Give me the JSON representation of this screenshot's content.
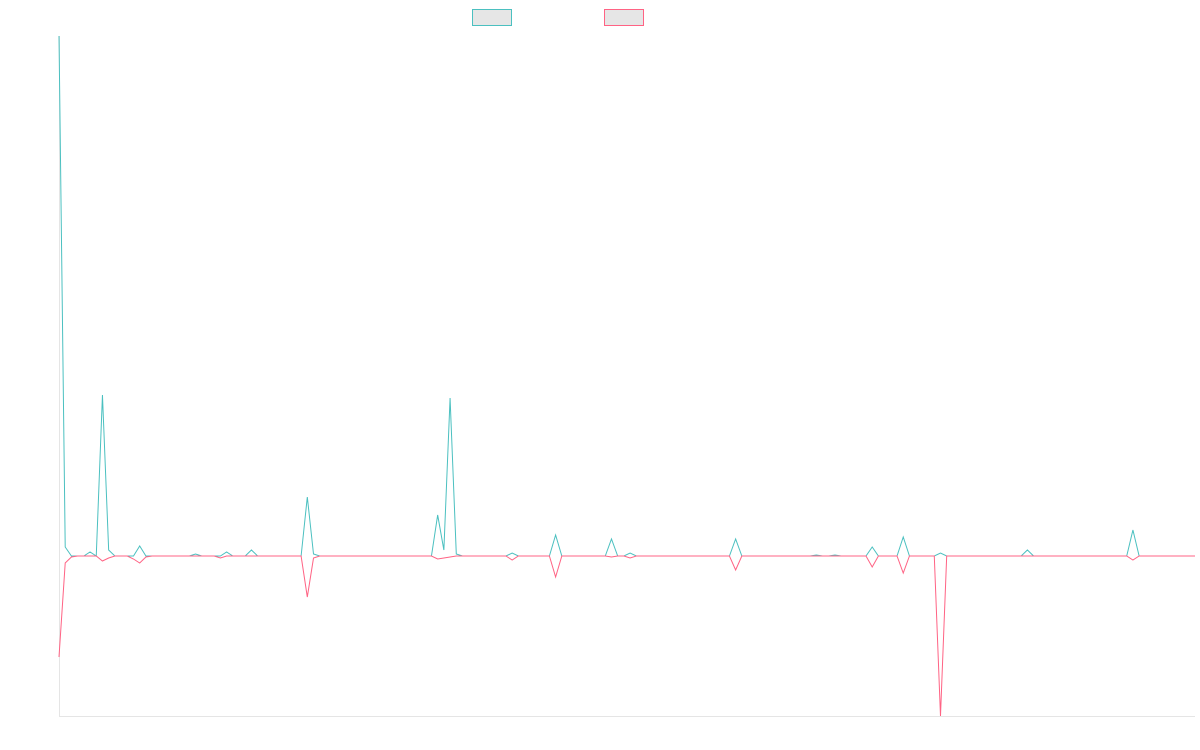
{
  "chart_data": {
    "type": "line",
    "ylim": [
      -160,
      520
    ],
    "series": [
      {
        "color": "#4bc0c0",
        "values": [
          520,
          9,
          0,
          0,
          0,
          4,
          0,
          161,
          6,
          0,
          0,
          0,
          0,
          10,
          0,
          0,
          0,
          0,
          0,
          0,
          0,
          0,
          2,
          0,
          0,
          0,
          0,
          4,
          0,
          0,
          0,
          6,
          0,
          0,
          0,
          0,
          0,
          0,
          0,
          0,
          59,
          2,
          0,
          0,
          0,
          0,
          0,
          0,
          0,
          0,
          0,
          0,
          0,
          0,
          0,
          0,
          0,
          0,
          0,
          0,
          0,
          41,
          6,
          158,
          2,
          0,
          0,
          0,
          0,
          0,
          0,
          0,
          0,
          3,
          0,
          0,
          0,
          0,
          0,
          0,
          21,
          0,
          0,
          0,
          0,
          0,
          0,
          0,
          0,
          17,
          0,
          0,
          3,
          0,
          0,
          0,
          0,
          0,
          0,
          0,
          0,
          0,
          0,
          0,
          0,
          0,
          0,
          0,
          0,
          17,
          0,
          0,
          0,
          0,
          0,
          0,
          0,
          0,
          0,
          0,
          0,
          0,
          1,
          0,
          0,
          1,
          0,
          0,
          0,
          0,
          0,
          9,
          0,
          0,
          0,
          0,
          19,
          0,
          0,
          0,
          0,
          0,
          3,
          0,
          0,
          0,
          0,
          0,
          0,
          0,
          0,
          0,
          0,
          0,
          0,
          0,
          6,
          0,
          0,
          0,
          0,
          0,
          0,
          0,
          0,
          0,
          0,
          0,
          0,
          0,
          0,
          0,
          0,
          26,
          0,
          0,
          0,
          0,
          0,
          0,
          0,
          0,
          0,
          0
        ]
      },
      {
        "color": "#ff6384",
        "values": [
          -101,
          -7,
          -1,
          0,
          0,
          0,
          0,
          -5,
          -2,
          0,
          0,
          0,
          -3,
          -7,
          -1,
          0,
          0,
          0,
          0,
          0,
          0,
          0,
          0,
          0,
          0,
          0,
          -2,
          0,
          0,
          0,
          0,
          0,
          0,
          0,
          0,
          0,
          0,
          0,
          0,
          0,
          -41,
          -2,
          0,
          0,
          0,
          0,
          0,
          0,
          0,
          0,
          0,
          0,
          0,
          0,
          0,
          0,
          0,
          0,
          0,
          0,
          0,
          -3,
          -2,
          -1,
          0,
          0,
          0,
          0,
          0,
          0,
          0,
          0,
          0,
          -4,
          0,
          0,
          0,
          0,
          0,
          0,
          -21,
          0,
          0,
          0,
          0,
          0,
          0,
          0,
          0,
          -1,
          0,
          0,
          -2,
          0,
          0,
          0,
          0,
          0,
          0,
          0,
          0,
          0,
          0,
          0,
          0,
          0,
          0,
          0,
          0,
          -14,
          0,
          0,
          0,
          0,
          0,
          0,
          0,
          0,
          0,
          0,
          0,
          0,
          0,
          0,
          0,
          0,
          0,
          0,
          0,
          0,
          0,
          -11,
          0,
          0,
          0,
          0,
          -17,
          0,
          0,
          0,
          0,
          0,
          -160,
          0,
          0,
          0,
          0,
          0,
          0,
          0,
          0,
          0,
          0,
          0,
          0,
          0,
          0,
          0,
          0,
          0,
          0,
          0,
          0,
          0,
          0,
          0,
          0,
          0,
          0,
          0,
          0,
          0,
          0,
          -4,
          0,
          0,
          0,
          0,
          0,
          0,
          0,
          0,
          0,
          0
        ]
      }
    ]
  }
}
